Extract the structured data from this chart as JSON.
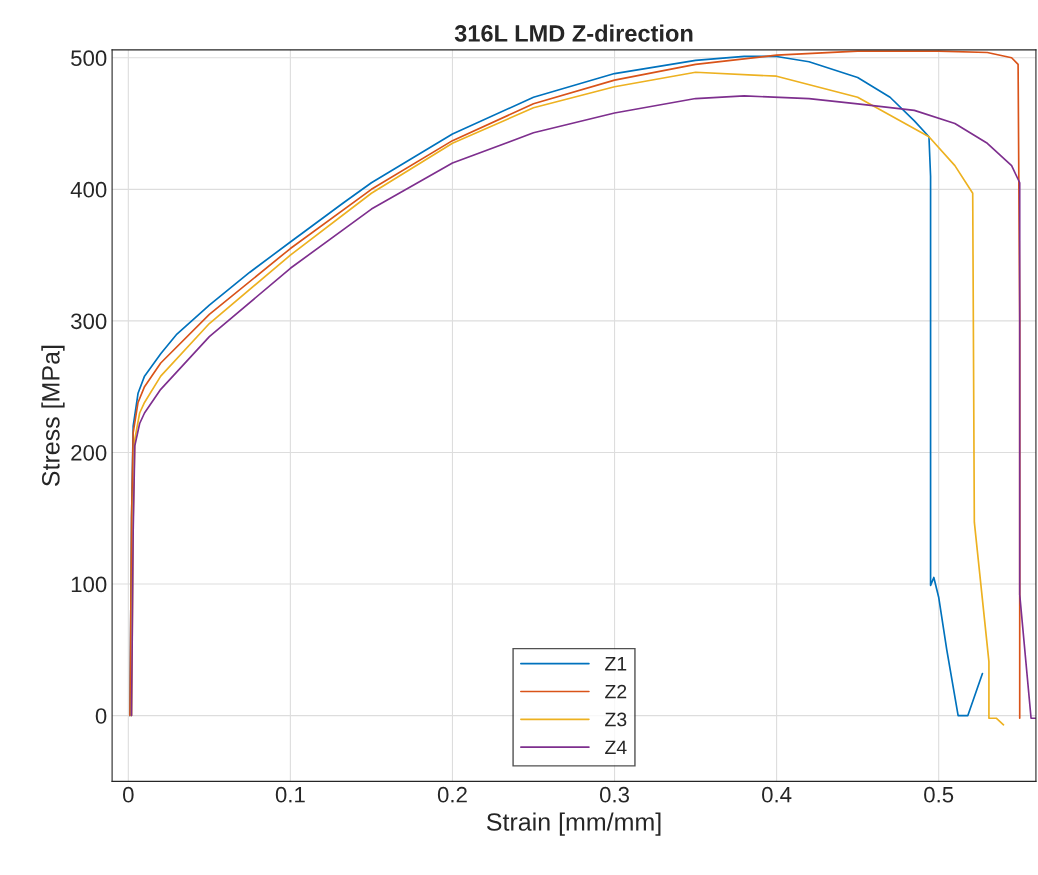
{
  "chart_data": {
    "type": "line",
    "title": "316L LMD Z-direction",
    "xlabel": "Strain [mm/mm]",
    "ylabel": "Stress [MPa]",
    "xlim": [
      -0.01,
      0.56
    ],
    "ylim": [
      -50,
      506
    ],
    "xticks": [
      0,
      0.1,
      0.2,
      0.3,
      0.4,
      0.5
    ],
    "yticks": [
      0,
      100,
      200,
      300,
      400,
      500
    ],
    "grid": true,
    "legend": "bottom",
    "line_style": "solid",
    "marker": "none",
    "series": [
      {
        "name": "Z1",
        "color": "#0072bd",
        "x": [
          0.001,
          0.002,
          0.003,
          0.006,
          0.01,
          0.02,
          0.03,
          0.05,
          0.075,
          0.1,
          0.133,
          0.15,
          0.2,
          0.25,
          0.3,
          0.35,
          0.38,
          0.4,
          0.42,
          0.45,
          0.47,
          0.485,
          0.494,
          0.495,
          0.495,
          0.497,
          0.5,
          0.505,
          0.512,
          0.518,
          0.527
        ],
        "values": [
          0,
          150,
          220,
          245,
          258,
          275,
          290,
          312,
          337,
          360,
          390,
          405,
          442,
          470,
          488,
          498,
          501,
          501,
          497,
          485,
          470,
          452,
          440,
          410,
          99,
          105,
          90,
          50,
          0,
          0,
          32
        ]
      },
      {
        "name": "Z2",
        "color": "#d95319",
        "x": [
          0.001,
          0.002,
          0.003,
          0.006,
          0.01,
          0.02,
          0.05,
          0.1,
          0.15,
          0.2,
          0.25,
          0.3,
          0.35,
          0.4,
          0.45,
          0.5,
          0.53,
          0.545,
          0.549,
          0.55,
          0.55,
          0.55
        ],
        "values": [
          0,
          150,
          215,
          238,
          250,
          268,
          305,
          355,
          400,
          437,
          465,
          483,
          495,
          502,
          505,
          505,
          504,
          500,
          495,
          300,
          90,
          -2
        ]
      },
      {
        "name": "Z3",
        "color": "#edb120",
        "x": [
          0.002,
          0.003,
          0.004,
          0.007,
          0.01,
          0.02,
          0.05,
          0.1,
          0.15,
          0.2,
          0.25,
          0.3,
          0.35,
          0.4,
          0.45,
          0.494,
          0.51,
          0.521,
          0.522,
          0.531,
          0.531,
          0.5355,
          0.54
        ],
        "values": [
          0,
          150,
          210,
          230,
          238,
          258,
          298,
          350,
          397,
          435,
          462,
          478,
          489,
          486,
          470,
          440,
          418,
          397,
          147,
          41,
          -2,
          -2,
          -7
        ]
      },
      {
        "name": "Z4",
        "color": "#7e2f8e",
        "x": [
          0.002,
          0.003,
          0.004,
          0.007,
          0.01,
          0.02,
          0.05,
          0.1,
          0.15,
          0.2,
          0.25,
          0.3,
          0.35,
          0.38,
          0.42,
          0.45,
          0.485,
          0.51,
          0.53,
          0.545,
          0.55,
          0.55,
          0.557,
          0.56
        ],
        "values": [
          0,
          140,
          205,
          222,
          230,
          248,
          288,
          340,
          385,
          420,
          443,
          458,
          469,
          471,
          469,
          465,
          460,
          450,
          435,
          418,
          405,
          92,
          -2,
          -2
        ]
      }
    ]
  }
}
